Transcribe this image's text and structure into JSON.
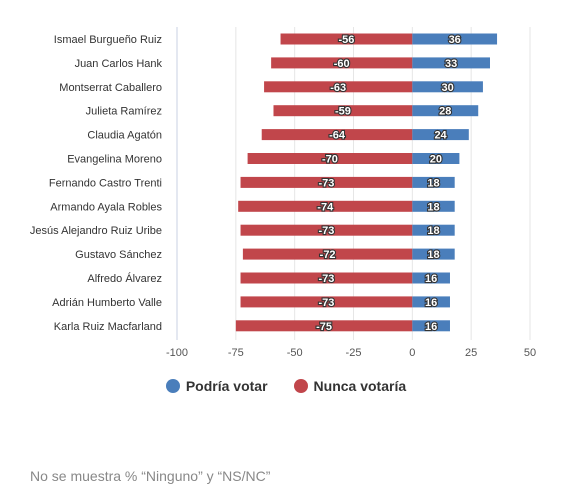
{
  "chart_data": {
    "type": "bar",
    "orientation": "horizontal",
    "stacked": "diverging",
    "categories": [
      "Ismael Burgueño Ruiz",
      "Juan Carlos Hank",
      "Montserrat Caballero",
      "Julieta Ramírez",
      "Claudia Agatón",
      "Evangelina Moreno",
      "Fernando Castro Trenti",
      "Armando Ayala Robles",
      "Jesús Alejandro Ruiz Uribe",
      "Gustavo Sánchez",
      "Alfredo Álvarez",
      "Adrián Humberto Valle",
      "Karla Ruiz Macfarland"
    ],
    "series": [
      {
        "name": "Podría votar",
        "color": "#4a7ebb",
        "values": [
          36,
          33,
          30,
          28,
          24,
          20,
          18,
          18,
          18,
          18,
          16,
          16,
          16
        ]
      },
      {
        "name": "Nunca votaría",
        "color": "#c1464b",
        "values": [
          -56,
          -60,
          -63,
          -59,
          -64,
          -70,
          -73,
          -74,
          -73,
          -72,
          -73,
          -73,
          -75
        ]
      }
    ],
    "xlim": [
      -100,
      50
    ],
    "xticks": [
      "-100",
      "-75",
      "-50",
      "-25",
      "0",
      "25",
      "50"
    ],
    "grid": true,
    "legend_position": "bottom"
  },
  "footnote": "No se muestra % “Ninguno” y “NS/NC”"
}
